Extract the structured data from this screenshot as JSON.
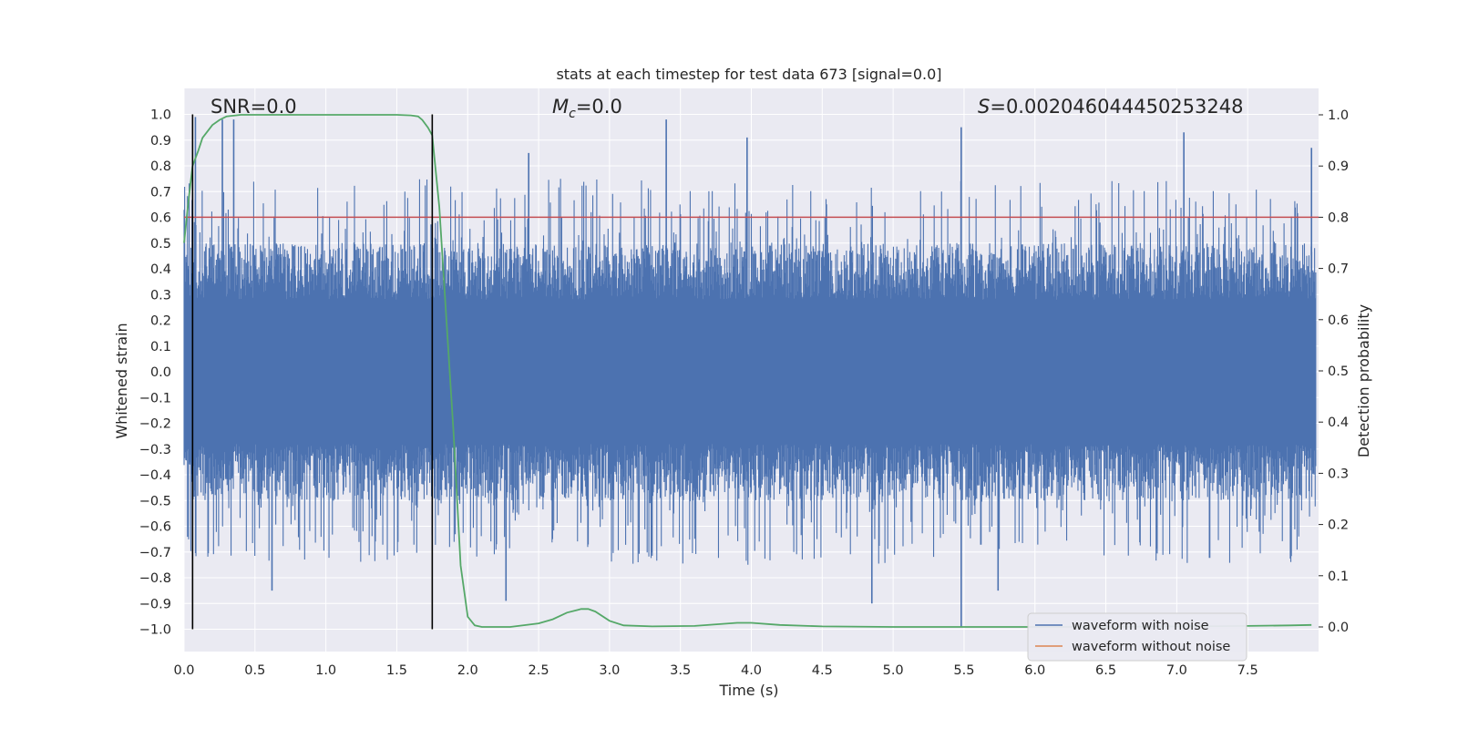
{
  "chart_data": {
    "type": "line",
    "title": "stats at each timestep for test data 673 [signal=0.0]",
    "xlabel": "Time (s)",
    "ylabel": "Whitened strain",
    "y2label": "Detection probability",
    "xlim": [
      0.0,
      8.0
    ],
    "ylim": [
      -1.1,
      1.1
    ],
    "y2lim": [
      -0.05,
      1.05
    ],
    "xticks": [
      "0.0",
      "0.5",
      "1.0",
      "1.5",
      "2.0",
      "2.5",
      "3.0",
      "3.5",
      "4.0",
      "4.5",
      "5.0",
      "5.5",
      "6.0",
      "6.5",
      "7.0",
      "7.5"
    ],
    "yticks": [
      "1.0",
      "0.9",
      "0.8",
      "0.7",
      "0.6",
      "0.5",
      "0.4",
      "0.3",
      "0.2",
      "0.1",
      "0.0",
      "−0.1",
      "−0.2",
      "−0.3",
      "−0.4",
      "−0.5",
      "−0.6",
      "−0.7",
      "−0.8",
      "−0.9",
      "−1.0"
    ],
    "y2ticks": [
      "1.0",
      "0.9",
      "0.8",
      "0.7",
      "0.6",
      "0.5",
      "0.4",
      "0.3",
      "0.2",
      "0.1",
      "0.0"
    ],
    "annotations": {
      "snr": "SNR=0.0",
      "mc_symbol": "M",
      "mc_sub": "c",
      "mc_value": "=0.0",
      "s_symbol": "S",
      "s_value": "=0.002046044450253248"
    },
    "legend": {
      "position": "lower-right",
      "entries": [
        {
          "label": "waveform with noise",
          "color": "#4c72b0"
        },
        {
          "label": "waveform without noise",
          "color": "#dd8452"
        }
      ]
    },
    "threshold": {
      "value": 0.8,
      "axis": "y2",
      "color": "#c44e52"
    },
    "vlines": {
      "x": [
        0.06,
        1.75
      ],
      "color": "#000000"
    },
    "noise": {
      "name": "waveform with noise",
      "color": "#4c72b0",
      "time_range": [
        0.0,
        7.98
      ],
      "approx_peak_abs": 0.97,
      "spikes": [
        {
          "x": 0.08,
          "y": 0.99
        },
        {
          "x": 0.27,
          "y": 0.98
        },
        {
          "x": 0.35,
          "y": 0.98
        },
        {
          "x": 2.43,
          "y": 0.85
        },
        {
          "x": 3.4,
          "y": 0.98
        },
        {
          "x": 3.97,
          "y": 0.91
        },
        {
          "x": 5.48,
          "y": 0.95
        },
        {
          "x": 5.48,
          "y": -0.99
        },
        {
          "x": 7.05,
          "y": 0.93
        },
        {
          "x": 7.95,
          "y": 0.87
        },
        {
          "x": 5.74,
          "y": -0.85
        },
        {
          "x": 4.85,
          "y": -0.9
        },
        {
          "x": 2.27,
          "y": -0.89
        },
        {
          "x": 0.62,
          "y": -0.85
        }
      ]
    },
    "detection_probability": {
      "name": "detection probability",
      "color": "#55a868",
      "x": [
        0.0,
        0.03,
        0.06,
        0.1,
        0.13,
        0.2,
        0.25,
        0.3,
        0.4,
        0.5,
        0.7,
        1.0,
        1.3,
        1.5,
        1.6,
        1.65,
        1.68,
        1.72,
        1.75,
        1.8,
        1.85,
        1.9,
        1.95,
        2.0,
        2.05,
        2.1,
        2.3,
        2.5,
        2.6,
        2.7,
        2.8,
        2.85,
        2.9,
        3.0,
        3.1,
        3.3,
        3.6,
        3.9,
        4.0,
        4.2,
        4.5,
        5.0,
        5.5,
        6.0,
        6.5,
        7.0,
        7.5,
        7.8,
        7.95
      ],
      "y": [
        0.75,
        0.83,
        0.9,
        0.93,
        0.955,
        0.98,
        0.99,
        0.997,
        1.0,
        1.0,
        1.0,
        1.0,
        1.0,
        1.0,
        0.999,
        0.997,
        0.99,
        0.975,
        0.96,
        0.82,
        0.6,
        0.38,
        0.12,
        0.02,
        0.003,
        0.0,
        0.0,
        0.007,
        0.015,
        0.028,
        0.035,
        0.035,
        0.03,
        0.012,
        0.003,
        0.001,
        0.002,
        0.008,
        0.008,
        0.004,
        0.001,
        0.0,
        0.0,
        0.0,
        0.0,
        0.001,
        0.002,
        0.003,
        0.004
      ]
    }
  }
}
